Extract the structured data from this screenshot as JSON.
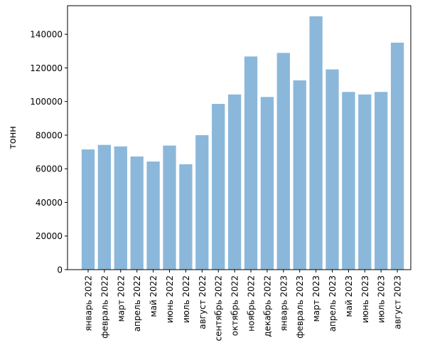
{
  "chart_data": {
    "type": "bar",
    "title": "",
    "xlabel": "",
    "ylabel": "тонн",
    "ylim": [
      0,
      157000
    ],
    "yticks": [
      0,
      20000,
      40000,
      60000,
      80000,
      100000,
      120000,
      140000
    ],
    "grid": false,
    "bar_color": "#8BB8DA",
    "categories": [
      "январь 2022",
      "февраль 2022",
      "март 2022",
      "апрель 2022",
      "май 2022",
      "июнь 2022",
      "июль 2022",
      "август 2022",
      "сентябрь 2022",
      "октябрь 2022",
      "ноябрь 2022",
      "декабрь 2022",
      "январь 2023",
      "февраль 2023",
      "март 2023",
      "апрель 2023",
      "май 2023",
      "июнь 2023",
      "июль 2023",
      "август 2023"
    ],
    "values": [
      71500,
      74200,
      73300,
      67300,
      64300,
      73800,
      62700,
      80000,
      98600,
      104200,
      126800,
      102700,
      128900,
      112600,
      150700,
      119100,
      105700,
      104200,
      105700,
      135000
    ]
  }
}
